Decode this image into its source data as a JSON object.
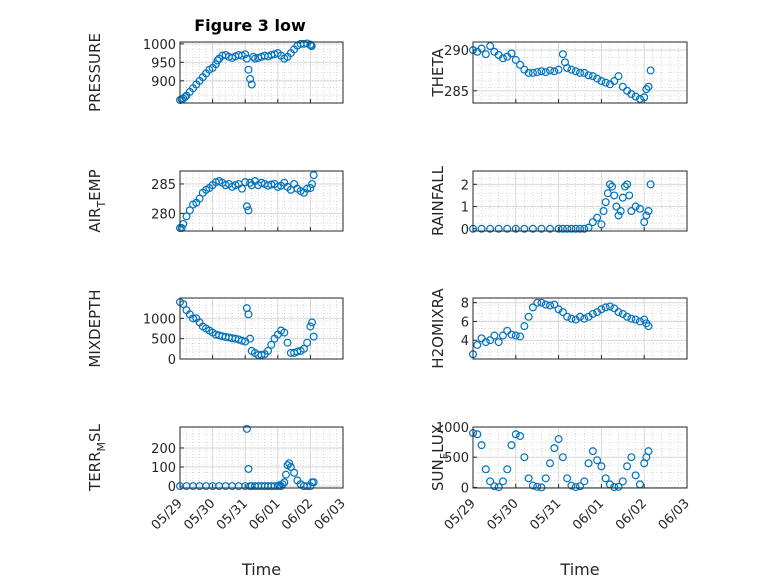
{
  "figure": {
    "title": "Figure 3 low"
  },
  "colors": {
    "marker": "#0072bd",
    "axis": "#262626",
    "grid": "#d9d9d9"
  },
  "chart_data": [
    {
      "type": "scatter",
      "title": "Figure 3 low",
      "ylabel": "PRESSURE",
      "ylim": [
        840,
        1005
      ],
      "yticks": [
        900,
        950,
        1000
      ],
      "xlim": [
        0,
        5
      ],
      "xticks": [],
      "grid": "on",
      "x": [
        0.0,
        0.05,
        0.1,
        0.15,
        0.2,
        0.3,
        0.4,
        0.5,
        0.6,
        0.7,
        0.8,
        0.9,
        1.0,
        1.1,
        1.15,
        1.2,
        1.3,
        1.4,
        1.5,
        1.6,
        1.7,
        1.8,
        1.9,
        2.0,
        2.05,
        2.1,
        2.15,
        2.2,
        2.25,
        2.3,
        2.4,
        2.5,
        2.6,
        2.7,
        2.8,
        2.9,
        3.0,
        3.1,
        3.2,
        3.3,
        3.4,
        3.5,
        3.6,
        3.7,
        3.8,
        3.9,
        4.0,
        4.02,
        4.04
      ],
      "y": [
        848,
        850,
        852,
        856,
        860,
        870,
        880,
        890,
        900,
        910,
        920,
        930,
        935,
        945,
        955,
        960,
        968,
        970,
        965,
        962,
        966,
        970,
        968,
        972,
        960,
        930,
        905,
        890,
        965,
        960,
        962,
        965,
        968,
        966,
        970,
        972,
        975,
        968,
        960,
        965,
        975,
        985,
        995,
        1000,
        1000,
        1001,
        998,
        995,
        994
      ]
    },
    {
      "type": "scatter",
      "ylabel": "THETA",
      "ylim": [
        283.5,
        291
      ],
      "yticks": [
        285,
        290
      ],
      "xlim": [
        0,
        5
      ],
      "xticks": [],
      "grid": "on",
      "x": [
        0.0,
        0.1,
        0.2,
        0.3,
        0.4,
        0.5,
        0.6,
        0.7,
        0.8,
        0.9,
        1.0,
        1.1,
        1.2,
        1.3,
        1.4,
        1.5,
        1.6,
        1.7,
        1.8,
        1.9,
        2.0,
        2.1,
        2.15,
        2.2,
        2.3,
        2.4,
        2.5,
        2.6,
        2.7,
        2.8,
        2.9,
        3.0,
        3.1,
        3.2,
        3.3,
        3.4,
        3.5,
        3.6,
        3.7,
        3.8,
        3.9,
        4.0,
        4.05,
        4.1,
        4.15
      ],
      "y": [
        290,
        289.8,
        290.2,
        289.5,
        290.5,
        289.8,
        289.4,
        289,
        289.2,
        289.6,
        288.8,
        288.2,
        287.6,
        287.2,
        287.2,
        287.3,
        287.4,
        287.3,
        287.5,
        287.4,
        287.6,
        289.5,
        288.5,
        287.8,
        287.6,
        287.4,
        287.2,
        287.2,
        286.9,
        286.8,
        286.5,
        286.2,
        286,
        285.8,
        286.2,
        286.8,
        285.5,
        285,
        284.6,
        284.3,
        284,
        284.2,
        285.2,
        285.5,
        287.5
      ]
    },
    {
      "type": "scatter",
      "ylabel": "AIR_TEMP",
      "ylim": [
        277,
        287.2
      ],
      "yticks": [
        280,
        285
      ],
      "xlim": [
        0,
        5
      ],
      "xticks": [],
      "grid": "on",
      "x": [
        0.0,
        0.05,
        0.1,
        0.2,
        0.3,
        0.4,
        0.5,
        0.6,
        0.7,
        0.8,
        0.9,
        1.0,
        1.1,
        1.2,
        1.3,
        1.4,
        1.5,
        1.6,
        1.7,
        1.8,
        1.9,
        2.0,
        2.05,
        2.1,
        2.15,
        2.2,
        2.3,
        2.4,
        2.5,
        2.6,
        2.7,
        2.8,
        2.9,
        3.0,
        3.1,
        3.2,
        3.3,
        3.4,
        3.5,
        3.6,
        3.7,
        3.8,
        3.9,
        4.0,
        4.05,
        4.1
      ],
      "y": [
        277.5,
        277.5,
        278.2,
        279.5,
        280.5,
        281.5,
        281.8,
        282.5,
        283.5,
        284,
        284.3,
        284.8,
        285.3,
        285.5,
        285.2,
        284.8,
        285,
        284.5,
        284.8,
        285,
        284.2,
        285.3,
        281.2,
        280.5,
        285.2,
        284.8,
        285.5,
        284.8,
        285.2,
        285,
        284.7,
        284.9,
        285,
        284.5,
        284.7,
        285.2,
        284.5,
        284,
        285,
        284.2,
        283.8,
        283.5,
        284.2,
        284.3,
        285,
        286.5
      ]
    },
    {
      "type": "scatter",
      "ylabel": "RAINFALL",
      "ylim": [
        -0.1,
        2.6
      ],
      "yticks": [
        0,
        1,
        2
      ],
      "xlim": [
        0,
        5
      ],
      "xticks": [],
      "grid": "on",
      "x": [
        0.0,
        0.2,
        0.4,
        0.6,
        0.8,
        1.0,
        1.2,
        1.4,
        1.6,
        1.8,
        2.0,
        2.1,
        2.2,
        2.3,
        2.4,
        2.5,
        2.6,
        2.7,
        2.8,
        2.9,
        3.0,
        3.05,
        3.1,
        3.15,
        3.2,
        3.25,
        3.3,
        3.35,
        3.4,
        3.45,
        3.5,
        3.55,
        3.6,
        3.65,
        3.7,
        3.8,
        3.9,
        4.0,
        4.05,
        4.1,
        4.15
      ],
      "y": [
        0,
        0,
        0,
        0,
        0,
        0,
        0,
        0,
        0,
        0,
        0,
        0,
        0,
        0,
        0,
        0,
        0,
        0.05,
        0.3,
        0.5,
        0.2,
        0.8,
        1.2,
        1.6,
        2.0,
        1.9,
        1.5,
        1.0,
        0.6,
        0.8,
        1.4,
        1.9,
        2.0,
        1.5,
        0.8,
        1.0,
        0.9,
        0.3,
        0.6,
        0.8,
        2.0
      ]
    },
    {
      "type": "scatter",
      "ylabel": "MIXDEPTH",
      "ylim": [
        0,
        1500
      ],
      "yticks": [
        0,
        500,
        1000
      ],
      "xlim": [
        0,
        5
      ],
      "xticks": [],
      "grid": "on",
      "x": [
        0.0,
        0.1,
        0.2,
        0.3,
        0.4,
        0.5,
        0.6,
        0.7,
        0.8,
        0.9,
        1.0,
        1.1,
        1.2,
        1.3,
        1.4,
        1.5,
        1.6,
        1.7,
        1.8,
        1.9,
        2.0,
        2.05,
        2.1,
        2.15,
        2.2,
        2.3,
        2.4,
        2.5,
        2.6,
        2.7,
        2.8,
        2.9,
        3.0,
        3.1,
        3.2,
        3.3,
        3.4,
        3.5,
        3.6,
        3.7,
        3.8,
        3.9,
        4.0,
        4.05,
        4.1
      ],
      "y": [
        1400,
        1350,
        1200,
        1100,
        1000,
        1000,
        900,
        800,
        750,
        700,
        650,
        600,
        580,
        560,
        540,
        530,
        510,
        500,
        480,
        450,
        430,
        1250,
        1100,
        500,
        200,
        150,
        100,
        100,
        120,
        200,
        350,
        500,
        600,
        700,
        650,
        400,
        150,
        150,
        180,
        200,
        250,
        400,
        800,
        900,
        550
      ]
    },
    {
      "type": "scatter",
      "ylabel": "H2OMIXRA",
      "ylim": [
        2,
        8.5
      ],
      "yticks": [
        4,
        6,
        8
      ],
      "xlim": [
        0,
        5
      ],
      "xticks": [],
      "grid": "on",
      "x": [
        0.0,
        0.1,
        0.2,
        0.3,
        0.4,
        0.5,
        0.6,
        0.7,
        0.8,
        0.9,
        1.0,
        1.1,
        1.2,
        1.3,
        1.4,
        1.5,
        1.6,
        1.7,
        1.8,
        1.9,
        2.0,
        2.1,
        2.2,
        2.3,
        2.4,
        2.5,
        2.6,
        2.7,
        2.8,
        2.9,
        3.0,
        3.1,
        3.2,
        3.3,
        3.4,
        3.5,
        3.6,
        3.7,
        3.8,
        3.9,
        4.0,
        4.05,
        4.1
      ],
      "y": [
        2.5,
        3.5,
        4.2,
        3.8,
        4.0,
        4.5,
        3.8,
        4.5,
        5.0,
        4.6,
        4.5,
        4.4,
        5.5,
        6.5,
        7.5,
        8.0,
        8.0,
        7.8,
        7.7,
        7.8,
        7.3,
        7.0,
        6.5,
        6.3,
        6.2,
        6.5,
        6.3,
        6.5,
        6.8,
        7.0,
        7.3,
        7.5,
        7.6,
        7.4,
        7.0,
        6.8,
        6.5,
        6.3,
        6.2,
        6.0,
        6.2,
        5.8,
        5.5
      ]
    },
    {
      "type": "scatter",
      "ylabel": "TERR_MSL",
      "ylim": [
        -10,
        310
      ],
      "yticks": [
        0,
        100,
        200
      ],
      "xlim": [
        0,
        5
      ],
      "xticks": [],
      "grid": "on",
      "x": [
        0.0,
        0.2,
        0.4,
        0.6,
        0.8,
        1.0,
        1.2,
        1.4,
        1.6,
        1.8,
        2.0,
        2.05,
        2.1,
        2.15,
        2.2,
        2.3,
        2.4,
        2.5,
        2.6,
        2.7,
        2.8,
        2.9,
        3.0,
        3.05,
        3.1,
        3.15,
        3.2,
        3.25,
        3.3,
        3.35,
        3.4,
        3.5,
        3.6,
        3.7,
        3.8,
        3.9,
        4.0,
        4.05,
        4.1
      ],
      "y": [
        0,
        0,
        0,
        0,
        0,
        0,
        0,
        0,
        0,
        0,
        0,
        300,
        90,
        0,
        0,
        0,
        0,
        0,
        0,
        0,
        0,
        0,
        0,
        5,
        0,
        10,
        20,
        60,
        110,
        120,
        100,
        70,
        30,
        10,
        0,
        0,
        0,
        20,
        20
      ]
    },
    {
      "type": "scatter",
      "ylabel": "SUN_FLUX",
      "ylim": [
        -10,
        1000
      ],
      "yticks": [
        0,
        500,
        1000
      ],
      "xlim": [
        0,
        5
      ],
      "xticks": [],
      "grid": "on",
      "x": [
        0.0,
        0.1,
        0.2,
        0.3,
        0.4,
        0.5,
        0.6,
        0.7,
        0.8,
        0.9,
        1.0,
        1.1,
        1.2,
        1.3,
        1.4,
        1.5,
        1.6,
        1.7,
        1.8,
        1.9,
        2.0,
        2.1,
        2.2,
        2.3,
        2.4,
        2.5,
        2.6,
        2.7,
        2.8,
        2.9,
        3.0,
        3.1,
        3.2,
        3.3,
        3.4,
        3.5,
        3.6,
        3.7,
        3.8,
        3.9,
        4.0,
        4.05,
        4.1
      ],
      "y": [
        900,
        880,
        700,
        300,
        100,
        20,
        5,
        100,
        300,
        700,
        880,
        850,
        500,
        150,
        30,
        10,
        0,
        150,
        400,
        650,
        800,
        500,
        150,
        30,
        5,
        20,
        100,
        400,
        600,
        450,
        350,
        150,
        50,
        5,
        10,
        100,
        350,
        500,
        200,
        50,
        400,
        500,
        600
      ]
    }
  ],
  "xaxis": {
    "label": "Time",
    "ticks": [
      "05/29",
      "05/30",
      "05/31",
      "06/01",
      "06/02",
      "06/03"
    ]
  },
  "panels": [
    {
      "ylabel_main": "PRESSURE",
      "ylabel_sub": "",
      "ylabel_tail": ""
    },
    {
      "ylabel_main": "THETA",
      "ylabel_sub": "",
      "ylabel_tail": ""
    },
    {
      "ylabel_main": "AIR",
      "ylabel_sub": "T",
      "ylabel_tail": "EMP"
    },
    {
      "ylabel_main": "RAINFALL",
      "ylabel_sub": "",
      "ylabel_tail": ""
    },
    {
      "ylabel_main": "MIXDEPTH",
      "ylabel_sub": "",
      "ylabel_tail": ""
    },
    {
      "ylabel_main": "H2OMIXRA",
      "ylabel_sub": "",
      "ylabel_tail": ""
    },
    {
      "ylabel_main": "TERR",
      "ylabel_sub": "M",
      "ylabel_tail": "SL"
    },
    {
      "ylabel_main": "SUN",
      "ylabel_sub": "F",
      "ylabel_tail": "LUX"
    }
  ]
}
